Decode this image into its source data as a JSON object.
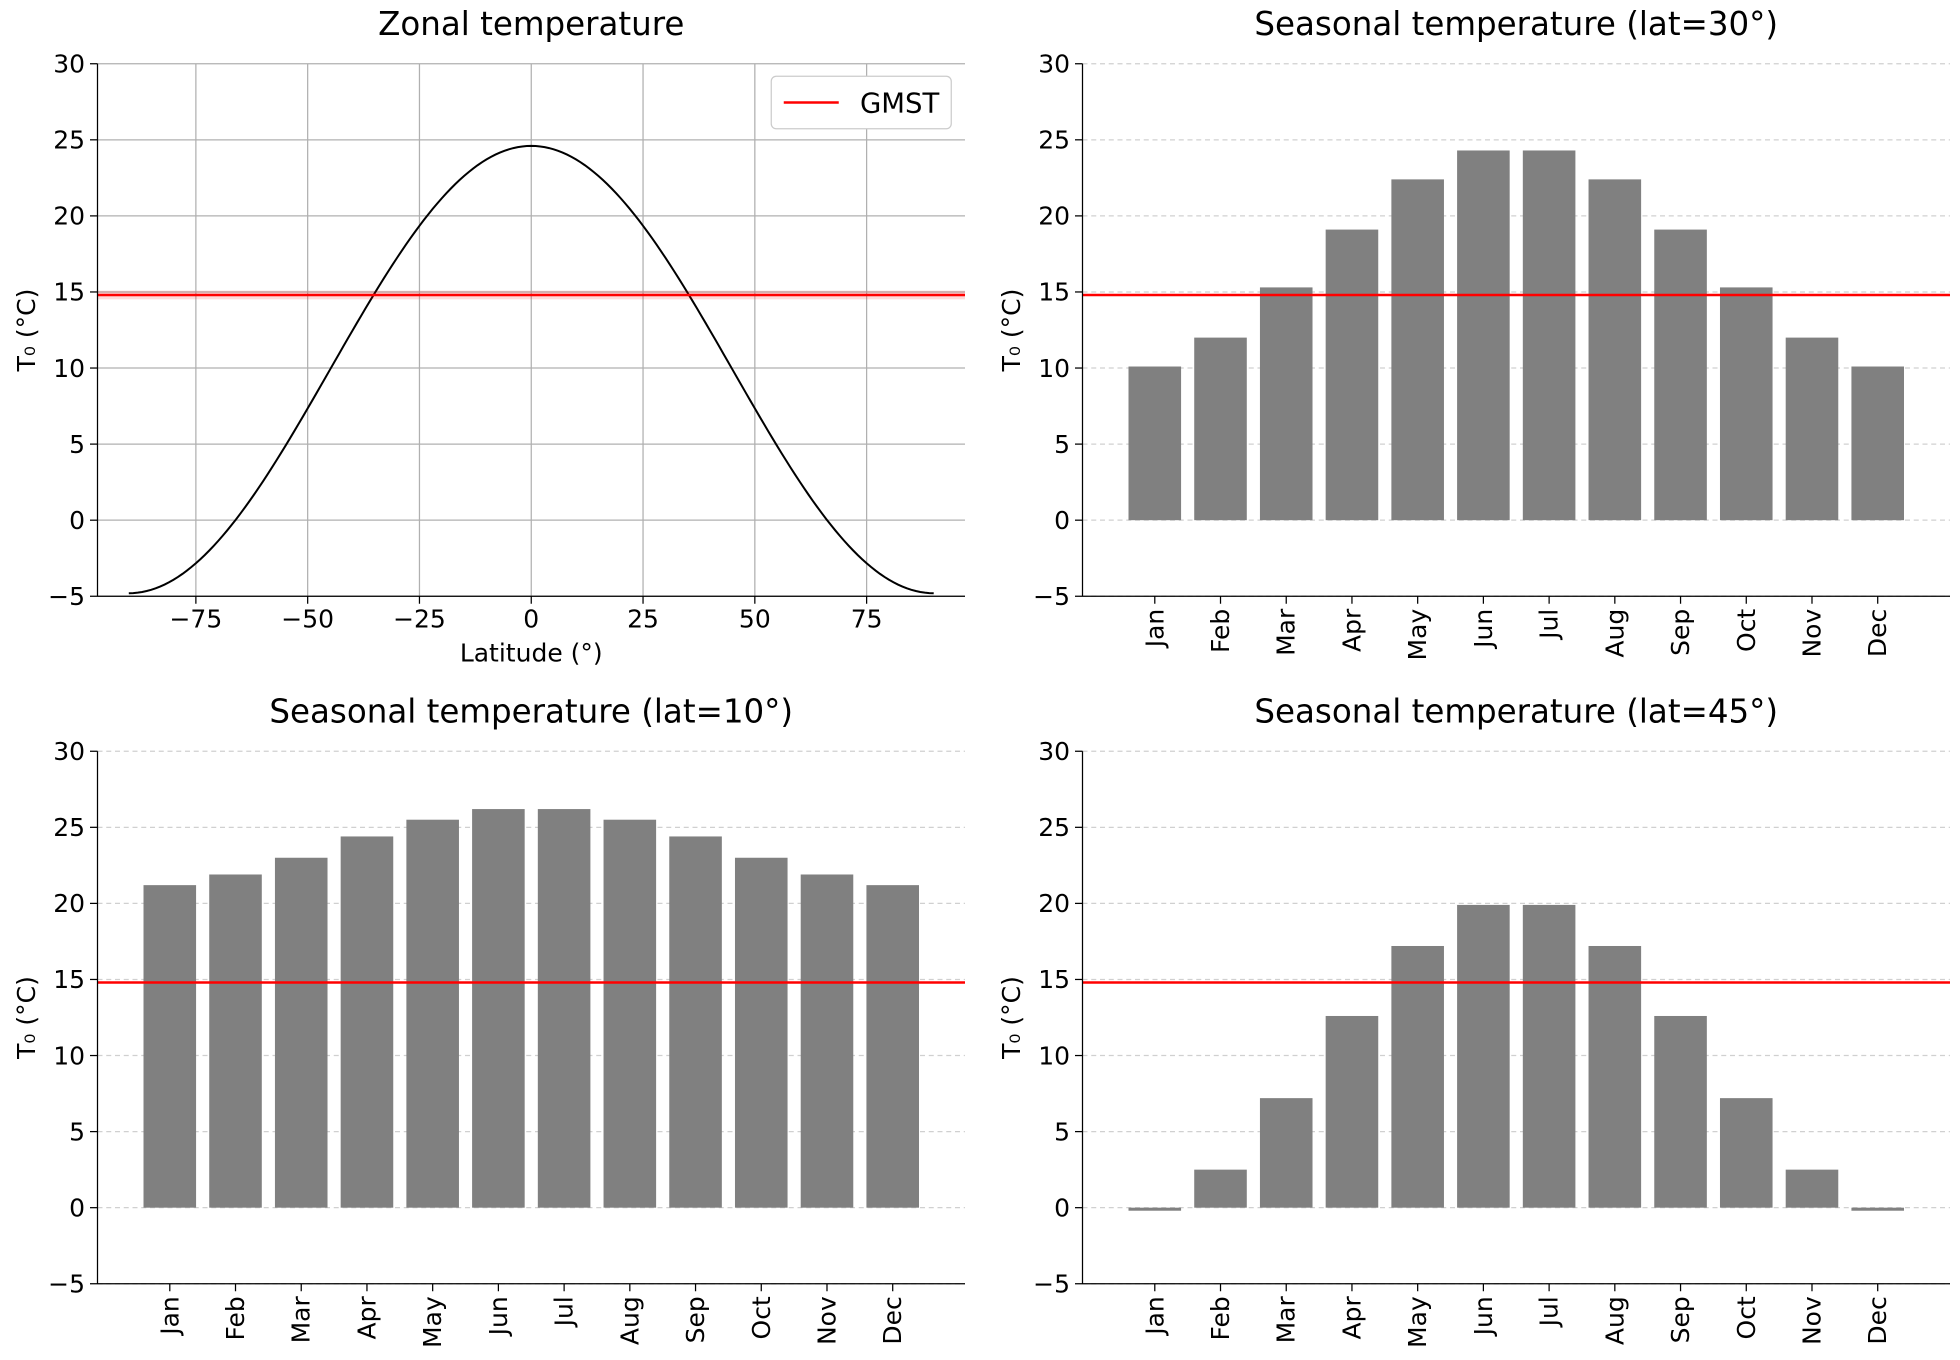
{
  "chart_data": [
    {
      "id": "zonal",
      "type": "line",
      "title": "Zonal temperature",
      "xlabel": "Latitude (°)",
      "ylabel": "T₀ (°C)",
      "xlim": [
        -97,
        97
      ],
      "ylim": [
        -5,
        30
      ],
      "xticks": [
        -75,
        -50,
        -25,
        0,
        25,
        50,
        75
      ],
      "xtick_labels": [
        "−75",
        "−50",
        "−25",
        "0",
        "25",
        "50",
        "75"
      ],
      "yticks": [
        -5,
        0,
        5,
        10,
        15,
        20,
        25,
        30
      ],
      "ytick_labels": [
        "−5",
        "0",
        "5",
        "10",
        "15",
        "20",
        "25",
        "30"
      ],
      "grid": "both-solid",
      "curve": {
        "name": "zonal-profile",
        "model": "T = a + b·cos²(lat)",
        "a": -4.8,
        "b": 29.4,
        "color": "#000000"
      },
      "gmst": 14.8,
      "gmst_color": "#ff0000",
      "legend": {
        "label": "GMST",
        "location": "upper-right"
      }
    },
    {
      "id": "lat30",
      "type": "bar",
      "title": "Seasonal temperature (lat=30°)",
      "xlabel": "",
      "ylabel": "T₀ (°C)",
      "ylim": [
        -5,
        30
      ],
      "yticks": [
        -5,
        0,
        5,
        10,
        15,
        20,
        25,
        30
      ],
      "ytick_labels": [
        "−5",
        "0",
        "5",
        "10",
        "15",
        "20",
        "25",
        "30"
      ],
      "grid": "y-dashed",
      "categories": [
        "Jan",
        "Feb",
        "Mar",
        "Apr",
        "May",
        "Jun",
        "Jul",
        "Aug",
        "Sep",
        "Oct",
        "Nov",
        "Dec"
      ],
      "values": [
        10.1,
        12.0,
        15.3,
        19.1,
        22.4,
        24.3,
        24.3,
        22.4,
        19.1,
        15.3,
        12.0,
        10.1
      ],
      "bar_color": "#808080",
      "gmst": 14.8,
      "gmst_color": "#ff0000"
    },
    {
      "id": "lat10",
      "type": "bar",
      "title": "Seasonal temperature (lat=10°)",
      "xlabel": "",
      "ylabel": "T₀ (°C)",
      "ylim": [
        -5,
        30
      ],
      "yticks": [
        -5,
        0,
        5,
        10,
        15,
        20,
        25,
        30
      ],
      "ytick_labels": [
        "−5",
        "0",
        "5",
        "10",
        "15",
        "20",
        "25",
        "30"
      ],
      "grid": "y-dashed",
      "categories": [
        "Jan",
        "Feb",
        "Mar",
        "Apr",
        "May",
        "Jun",
        "Jul",
        "Aug",
        "Sep",
        "Oct",
        "Nov",
        "Dec"
      ],
      "values": [
        21.2,
        21.9,
        23.0,
        24.4,
        25.5,
        26.2,
        26.2,
        25.5,
        24.4,
        23.0,
        21.9,
        21.2
      ],
      "bar_color": "#808080",
      "gmst": 14.8,
      "gmst_color": "#ff0000"
    },
    {
      "id": "lat45",
      "type": "bar",
      "title": "Seasonal temperature (lat=45°)",
      "xlabel": "",
      "ylabel": "T₀ (°C)",
      "ylim": [
        -5,
        30
      ],
      "yticks": [
        -5,
        0,
        5,
        10,
        15,
        20,
        25,
        30
      ],
      "ytick_labels": [
        "−5",
        "0",
        "5",
        "10",
        "15",
        "20",
        "25",
        "30"
      ],
      "grid": "y-dashed",
      "categories": [
        "Jan",
        "Feb",
        "Mar",
        "Apr",
        "May",
        "Jun",
        "Jul",
        "Aug",
        "Sep",
        "Oct",
        "Nov",
        "Dec"
      ],
      "values": [
        -0.2,
        2.5,
        7.2,
        12.6,
        17.2,
        19.9,
        19.9,
        17.2,
        12.6,
        7.2,
        2.5,
        -0.2
      ],
      "bar_color": "#808080",
      "gmst": 14.8,
      "gmst_color": "#ff0000"
    }
  ]
}
